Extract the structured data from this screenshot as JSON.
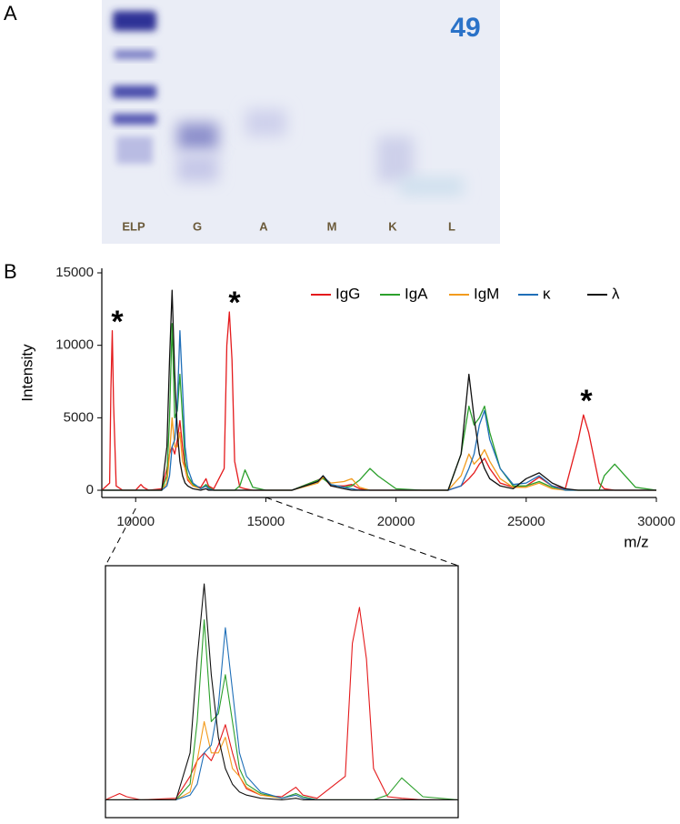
{
  "panel_labels": [
    "A",
    "B"
  ],
  "gel": {
    "lanes": [
      "ELP",
      "G",
      "A",
      "M",
      "K",
      "L"
    ],
    "marker": "49"
  },
  "chart_data": {
    "type": "line",
    "x_label": "m/z",
    "y_label": "Intensity",
    "x": [
      8700,
      9000,
      9050,
      9100,
      9150,
      9250,
      9500,
      10000,
      10200,
      10300,
      10500,
      11000,
      11200,
      11300,
      11400,
      11500,
      11600,
      11700,
      11800,
      11900,
      12000,
      12200,
      12500,
      12700,
      12800,
      13000,
      13400,
      13500,
      13600,
      13700,
      13800,
      14000,
      14200,
      14500,
      15000,
      16000,
      17000,
      17200,
      17500,
      18000,
      18300,
      18600,
      19000,
      19300,
      20000,
      21000,
      22000,
      22500,
      22800,
      23000,
      23200,
      23400,
      23600,
      24000,
      24500,
      25000,
      25500,
      26000,
      26500,
      27000,
      27200,
      27400,
      27800,
      28000,
      28400,
      28800,
      29200,
      30000
    ],
    "series": [
      {
        "name": "IgG",
        "color": "#e41a1c",
        "values": [
          0,
          500,
          7000,
          11000,
          6000,
          300,
          0,
          0,
          400,
          200,
          0,
          100,
          1500,
          2500,
          3000,
          2500,
          3500,
          4800,
          3000,
          1500,
          700,
          300,
          200,
          800,
          300,
          100,
          1500,
          10000,
          12300,
          9000,
          2000,
          200,
          100,
          0,
          0,
          0,
          700,
          900,
          300,
          300,
          400,
          100,
          0,
          0,
          0,
          0,
          0,
          300,
          800,
          1200,
          1800,
          2200,
          1500,
          500,
          200,
          300,
          900,
          300,
          100,
          3500,
          5200,
          4000,
          500,
          100,
          0,
          0,
          0,
          0
        ]
      },
      {
        "name": "IgA",
        "color": "#2ca02c",
        "values": [
          0,
          0,
          0,
          0,
          0,
          0,
          0,
          0,
          0,
          0,
          0,
          0,
          1000,
          5000,
          11500,
          5000,
          5500,
          8000,
          5000,
          2000,
          1000,
          400,
          100,
          400,
          200,
          0,
          0,
          0,
          0,
          0,
          0,
          300,
          1400,
          200,
          0,
          0,
          700,
          800,
          400,
          200,
          300,
          700,
          1500,
          1000,
          100,
          0,
          0,
          2500,
          5800,
          4500,
          5000,
          5800,
          4000,
          1500,
          300,
          300,
          600,
          200,
          0,
          0,
          0,
          0,
          0,
          1000,
          1800,
          1000,
          200,
          0
        ]
      },
      {
        "name": "IgM",
        "color": "#f29b1d",
        "values": [
          0,
          0,
          0,
          0,
          0,
          0,
          0,
          0,
          0,
          0,
          0,
          0,
          500,
          2500,
          5000,
          3000,
          3000,
          4000,
          2000,
          1500,
          800,
          300,
          100,
          300,
          100,
          0,
          0,
          0,
          0,
          0,
          0,
          0,
          0,
          0,
          0,
          0,
          500,
          900,
          500,
          600,
          800,
          200,
          0,
          0,
          0,
          0,
          0,
          1000,
          2500,
          1800,
          2200,
          2800,
          2000,
          800,
          200,
          200,
          500,
          100,
          0,
          0,
          0,
          0,
          0,
          0,
          0,
          0,
          0,
          0
        ]
      },
      {
        "name": "κ",
        "color": "#1f6fb8",
        "values": [
          0,
          0,
          0,
          0,
          0,
          0,
          0,
          0,
          0,
          0,
          0,
          0,
          300,
          1000,
          3000,
          3500,
          6000,
          11000,
          7000,
          3000,
          1500,
          500,
          100,
          300,
          100,
          0,
          0,
          0,
          0,
          0,
          0,
          0,
          0,
          0,
          0,
          0,
          600,
          1000,
          400,
          200,
          100,
          0,
          0,
          0,
          0,
          0,
          0,
          300,
          1500,
          2500,
          4500,
          5500,
          3500,
          1500,
          400,
          500,
          1000,
          300,
          0,
          0,
          0,
          0,
          0,
          0,
          0,
          0,
          0,
          0
        ]
      },
      {
        "name": "λ",
        "color": "#111111",
        "values": [
          0,
          0,
          0,
          0,
          0,
          0,
          0,
          0,
          0,
          0,
          0,
          0,
          3000,
          9000,
          13800,
          8000,
          4000,
          2000,
          1000,
          500,
          300,
          100,
          0,
          100,
          0,
          0,
          0,
          0,
          0,
          0,
          0,
          0,
          0,
          0,
          0,
          0,
          600,
          1000,
          300,
          100,
          0,
          0,
          0,
          0,
          0,
          0,
          0,
          2500,
          8000,
          5000,
          2500,
          1500,
          800,
          300,
          100,
          800,
          1200,
          500,
          100,
          0,
          0,
          0,
          0,
          0,
          0,
          0,
          0,
          0
        ]
      }
    ],
    "xlim": [
      8700,
      30000
    ],
    "ylim": [
      -500,
      15000
    ],
    "xticks": [
      10000,
      15000,
      20000,
      25000,
      30000
    ],
    "yticks": [
      0,
      5000,
      10000,
      15000
    ],
    "legend": "upper right",
    "annotations": [
      "*",
      "*",
      "*"
    ],
    "inset": {
      "xlim": [
        10000,
        15000
      ],
      "ylim": [
        -500,
        14500
      ]
    }
  }
}
